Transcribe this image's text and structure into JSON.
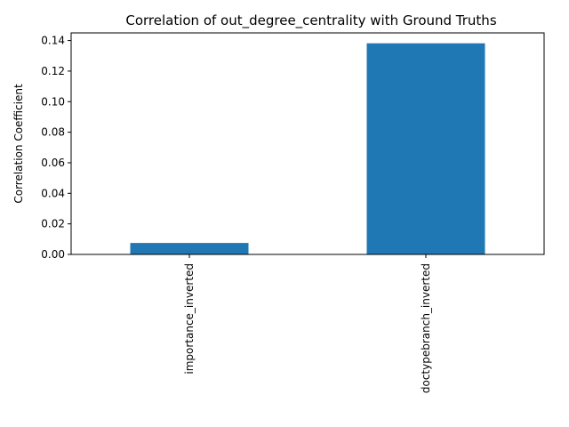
{
  "chart_data": {
    "type": "bar",
    "title": "Correlation of out_degree_centrality with Ground Truths",
    "xlabel": "",
    "ylabel": "Correlation Coefficient",
    "categories": [
      "importance_inverted",
      "doctypebranch_inverted"
    ],
    "values": [
      0.0075,
      0.1382
    ],
    "ylim": [
      0,
      0.145
    ],
    "yticks": [
      0.0,
      0.02,
      0.04,
      0.06,
      0.08,
      0.1,
      0.12,
      0.14
    ],
    "ytick_labels": [
      "0.00",
      "0.02",
      "0.04",
      "0.06",
      "0.08",
      "0.10",
      "0.12",
      "0.14"
    ],
    "grid": false,
    "legend": "none",
    "bar_color": "#1f77b4"
  }
}
